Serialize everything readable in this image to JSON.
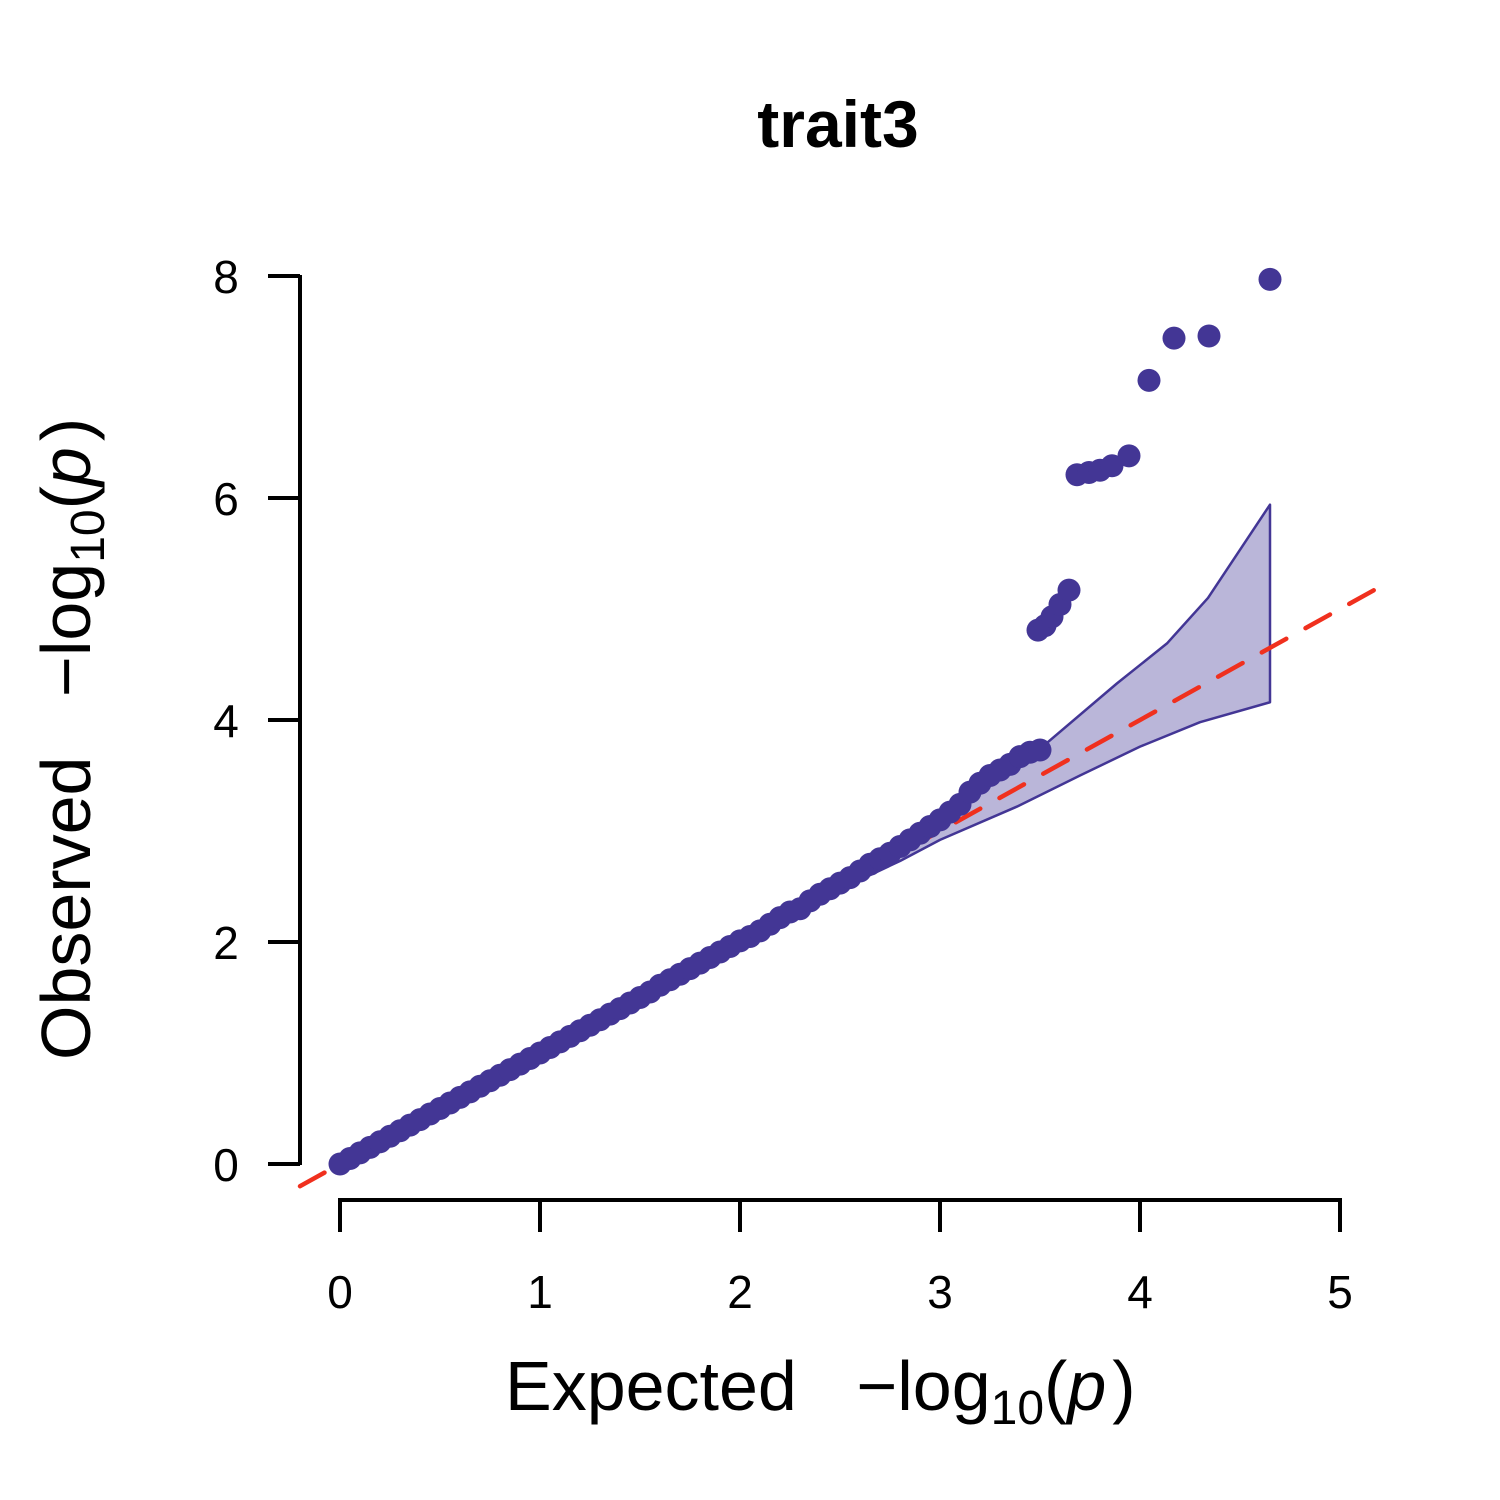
{
  "chart_data": {
    "type": "scatter",
    "title": "trait3",
    "xlabel": "Expected",
    "ylabel": "Observed",
    "axis_expr": {
      "prefix": "−log",
      "sub": "10",
      "open": "(",
      "var": "p",
      "close": ")"
    },
    "xlim": [
      0,
      5
    ],
    "ylim": [
      0,
      8
    ],
    "xticks": [
      0,
      1,
      2,
      3,
      4,
      5
    ],
    "yticks": [
      0,
      2,
      4,
      6,
      8
    ],
    "xtick_labels": [
      "0",
      "1",
      "2",
      "3",
      "4",
      "5"
    ],
    "ytick_labels": [
      "0",
      "2",
      "4",
      "6",
      "8"
    ],
    "reference_line": {
      "slope": 1,
      "intercept": 0,
      "style": "dashed",
      "color": "#f0301e"
    },
    "point_color": "#433695",
    "band_fill": "#bab6d9",
    "band_stroke": "#433695",
    "confidence_band": {
      "upper": [
        [
          2.5,
          2.52
        ],
        [
          2.6,
          2.64
        ],
        [
          2.8,
          2.85
        ],
        [
          3.0,
          3.1
        ],
        [
          3.2,
          3.38
        ],
        [
          3.5,
          3.74
        ],
        [
          3.885,
          4.33
        ],
        [
          4.135,
          4.69
        ],
        [
          4.34,
          5.1
        ],
        [
          4.65,
          5.94
        ]
      ],
      "lower": [
        [
          2.5,
          2.48
        ],
        [
          2.6,
          2.56
        ],
        [
          2.8,
          2.73
        ],
        [
          3.0,
          2.92
        ],
        [
          3.385,
          3.22
        ],
        [
          3.7,
          3.5
        ],
        [
          4.0,
          3.76
        ],
        [
          4.3,
          3.98
        ],
        [
          4.65,
          4.16
        ]
      ]
    },
    "points": [
      [
        0,
        0
      ],
      [
        0.05,
        0.05
      ],
      [
        0.1,
        0.1
      ],
      [
        0.15,
        0.15
      ],
      [
        0.2,
        0.2
      ],
      [
        0.25,
        0.25
      ],
      [
        0.3,
        0.3
      ],
      [
        0.35,
        0.35
      ],
      [
        0.4,
        0.4
      ],
      [
        0.45,
        0.45
      ],
      [
        0.5,
        0.5
      ],
      [
        0.55,
        0.55
      ],
      [
        0.6,
        0.6
      ],
      [
        0.65,
        0.65
      ],
      [
        0.7,
        0.7
      ],
      [
        0.75,
        0.75
      ],
      [
        0.8,
        0.8
      ],
      [
        0.85,
        0.85
      ],
      [
        0.9,
        0.9
      ],
      [
        0.95,
        0.95
      ],
      [
        1.0,
        1.0
      ],
      [
        1.05,
        1.05
      ],
      [
        1.1,
        1.1
      ],
      [
        1.15,
        1.15
      ],
      [
        1.2,
        1.2
      ],
      [
        1.25,
        1.25
      ],
      [
        1.3,
        1.3
      ],
      [
        1.35,
        1.35
      ],
      [
        1.4,
        1.4
      ],
      [
        1.45,
        1.45
      ],
      [
        1.5,
        1.5
      ],
      [
        1.55,
        1.55
      ],
      [
        1.6,
        1.61
      ],
      [
        1.65,
        1.66
      ],
      [
        1.7,
        1.71
      ],
      [
        1.75,
        1.76
      ],
      [
        1.8,
        1.81
      ],
      [
        1.85,
        1.86
      ],
      [
        1.9,
        1.91
      ],
      [
        1.95,
        1.96
      ],
      [
        2.0,
        2.01
      ],
      [
        2.05,
        2.05
      ],
      [
        2.1,
        2.1
      ],
      [
        2.15,
        2.16
      ],
      [
        2.2,
        2.22
      ],
      [
        2.25,
        2.27
      ],
      [
        2.3,
        2.3
      ],
      [
        2.35,
        2.37
      ],
      [
        2.4,
        2.43
      ],
      [
        2.45,
        2.48
      ],
      [
        2.5,
        2.53
      ],
      [
        2.55,
        2.58
      ],
      [
        2.6,
        2.64
      ],
      [
        2.65,
        2.7
      ],
      [
        2.7,
        2.75
      ],
      [
        2.75,
        2.8
      ],
      [
        2.8,
        2.86
      ],
      [
        2.85,
        2.92
      ],
      [
        2.9,
        2.98
      ],
      [
        2.95,
        3.04
      ],
      [
        3.0,
        3.1
      ],
      [
        3.05,
        3.17
      ],
      [
        3.1,
        3.24
      ],
      [
        3.15,
        3.35
      ],
      [
        3.2,
        3.43
      ],
      [
        3.25,
        3.5
      ],
      [
        3.3,
        3.55
      ],
      [
        3.35,
        3.6
      ],
      [
        3.4,
        3.67
      ],
      [
        3.45,
        3.71
      ],
      [
        3.5,
        3.73
      ],
      [
        3.49,
        4.81
      ],
      [
        3.525,
        4.85
      ],
      [
        3.56,
        4.93
      ],
      [
        3.6,
        5.04
      ],
      [
        3.645,
        5.17
      ],
      [
        3.685,
        6.21
      ],
      [
        3.745,
        6.23
      ],
      [
        3.8,
        6.25
      ],
      [
        3.86,
        6.29
      ],
      [
        3.945,
        6.38
      ],
      [
        4.045,
        7.06
      ],
      [
        4.17,
        7.44
      ],
      [
        4.345,
        7.46
      ],
      [
        4.65,
        7.97
      ]
    ]
  }
}
